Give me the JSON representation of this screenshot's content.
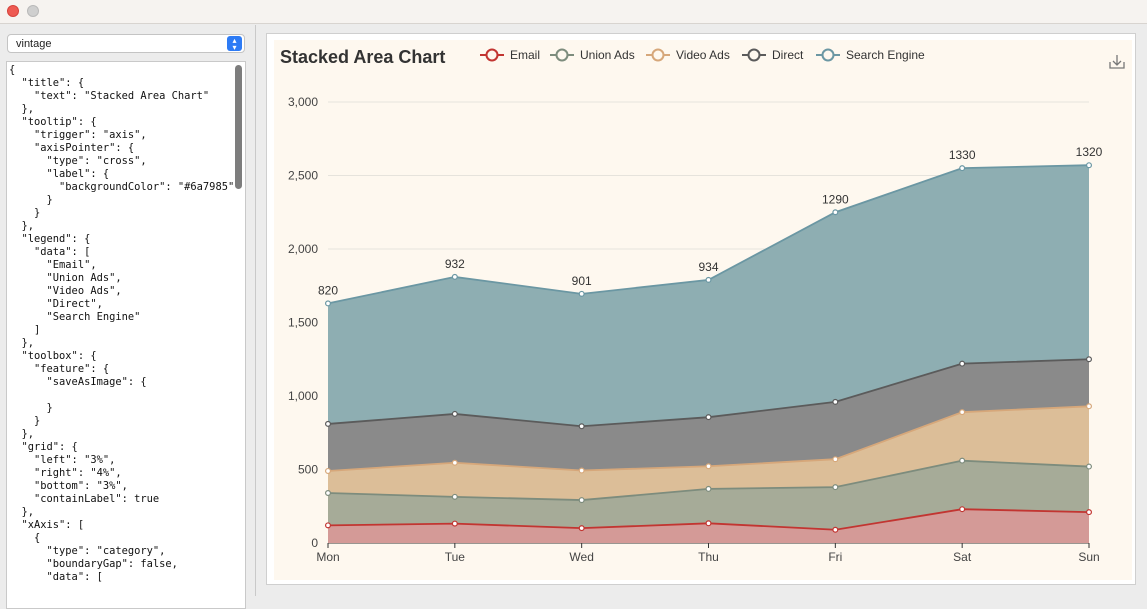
{
  "window": {
    "theme_select": "vintage"
  },
  "code_text": "{\n  \"title\": {\n    \"text\": \"Stacked Area Chart\"\n  },\n  \"tooltip\": {\n    \"trigger\": \"axis\",\n    \"axisPointer\": {\n      \"type\": \"cross\",\n      \"label\": {\n        \"backgroundColor\": \"#6a7985\"\n      }\n    }\n  },\n  \"legend\": {\n    \"data\": [\n      \"Email\",\n      \"Union Ads\",\n      \"Video Ads\",\n      \"Direct\",\n      \"Search Engine\"\n    ]\n  },\n  \"toolbox\": {\n    \"feature\": {\n      \"saveAsImage\": {\n\n      }\n    }\n  },\n  \"grid\": {\n    \"left\": \"3%\",\n    \"right\": \"4%\",\n    \"bottom\": \"3%\",\n    \"containLabel\": true\n  },\n  \"xAxis\": [\n    {\n      \"type\": \"category\",\n      \"boundaryGap\": false,\n      \"data\": [",
  "chart_data": {
    "type": "area",
    "stacked": true,
    "title": "Stacked Area Chart",
    "categories": [
      "Mon",
      "Tue",
      "Wed",
      "Thu",
      "Fri",
      "Sat",
      "Sun"
    ],
    "ylim": [
      0,
      3000
    ],
    "yticks": [
      0,
      500,
      1000,
      1500,
      2000,
      2500,
      3000
    ],
    "ytick_labels": [
      "0",
      "500",
      "1,000",
      "1,500",
      "2,000",
      "2,500",
      "3,000"
    ],
    "legend_position": "top",
    "grid": true,
    "series": [
      {
        "name": "Email",
        "values": [
          120,
          132,
          101,
          134,
          90,
          230,
          210
        ],
        "color": "#c23531",
        "fill": "#d49a97"
      },
      {
        "name": "Union Ads",
        "values": [
          220,
          182,
          191,
          234,
          290,
          330,
          310
        ],
        "color": "#7d8c7d",
        "fill": "#a6ab98"
      },
      {
        "name": "Video Ads",
        "values": [
          150,
          232,
          201,
          154,
          190,
          330,
          410
        ],
        "color": "#d6a77a",
        "fill": "#dcbe98"
      },
      {
        "name": "Direct",
        "values": [
          320,
          332,
          301,
          334,
          390,
          330,
          320
        ],
        "color": "#5b5b5b",
        "fill": "#8a8a8a"
      },
      {
        "name": "Search Engine",
        "values": [
          820,
          932,
          901,
          934,
          1290,
          1330,
          1320
        ],
        "color": "#6b97a3",
        "fill": "#8eaeb2",
        "show_labels": true
      }
    ]
  }
}
